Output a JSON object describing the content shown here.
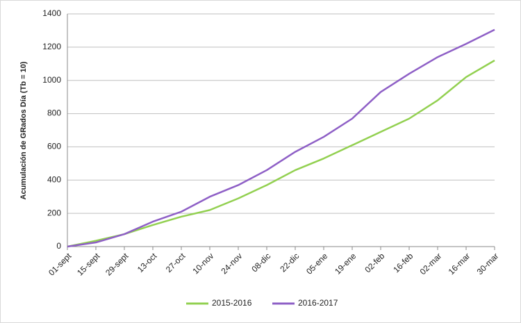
{
  "chart_data": {
    "type": "line",
    "y_label": "Acumulación de GRados Día (Tb = 10)",
    "categories": [
      "01-sept",
      "15-sept",
      "29-sept",
      "13-oct",
      "27-oct",
      "10-nov",
      "24-nov",
      "08-dic",
      "22-dic",
      "05-ene",
      "19-ene",
      "02-feb",
      "16-feb",
      "02-mar",
      "16-mar",
      "30-mar"
    ],
    "series": [
      {
        "name": "2015-2016",
        "color": "#92d050",
        "values": [
          0,
          35,
          75,
          130,
          180,
          220,
          290,
          370,
          460,
          530,
          610,
          690,
          770,
          880,
          1020,
          1120
        ]
      },
      {
        "name": "2016-2017",
        "color": "#8e5fc6",
        "values": [
          0,
          25,
          75,
          150,
          210,
          300,
          370,
          460,
          570,
          660,
          770,
          930,
          1040,
          1140,
          1220,
          1305
        ]
      }
    ],
    "ylim": [
      0,
      1400
    ],
    "yticks": [
      0,
      200,
      400,
      600,
      800,
      1000,
      1200,
      1400
    ],
    "grid": true,
    "legend": "bottom"
  }
}
